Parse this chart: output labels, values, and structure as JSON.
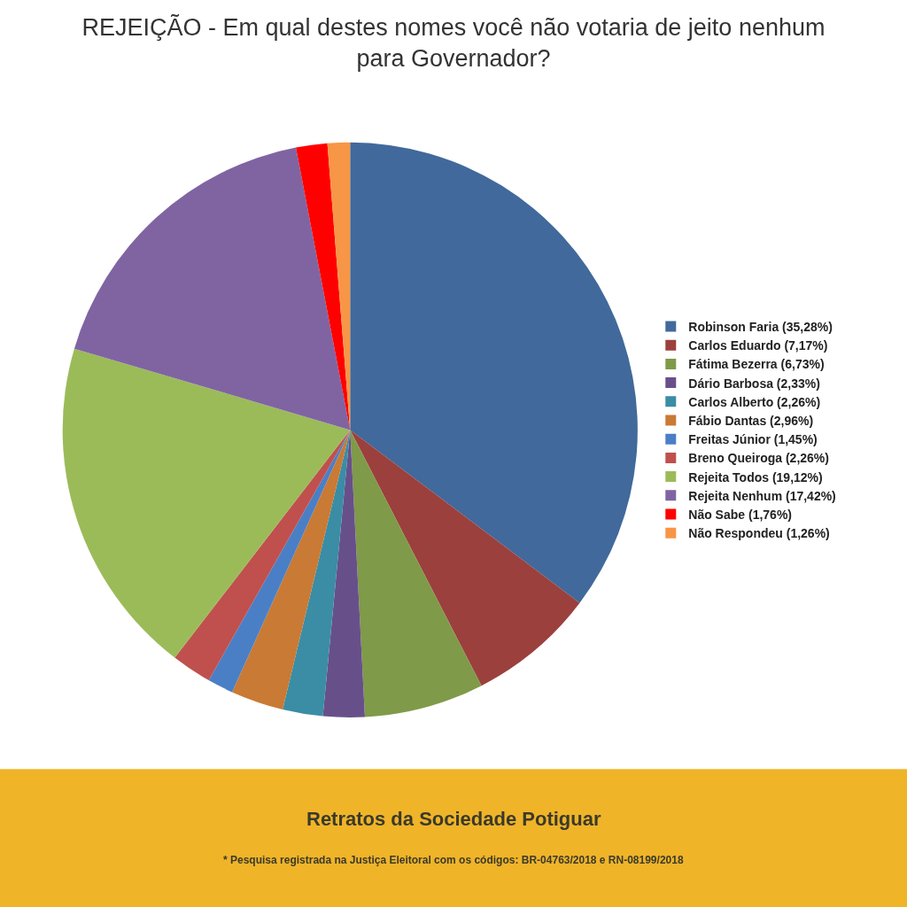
{
  "chart_data": {
    "type": "pie",
    "title": "REJEIÇÃO - Em qual destes nomes você não votaria de jeito nenhum para Governador?",
    "categories": [
      "Robinson Faria (35,28%)",
      "Carlos Eduardo (7,17%)",
      "Fátima Bezerra (6,73%)",
      "Dário Barbosa (2,33%)",
      "Carlos Alberto (2,26%)",
      "Fábio Dantas (2,96%)",
      "Freitas Júnior (1,45%)",
      "Breno Queiroga (2,26%)",
      "Rejeita Todos (19,12%)",
      "Rejeita Nenhum (17,42%)",
      "Não Sabe (1,76%)",
      "Não Respondeu (1,26%)"
    ],
    "values": [
      35.28,
      7.17,
      6.73,
      2.33,
      2.26,
      2.96,
      1.45,
      2.26,
      19.12,
      17.42,
      1.76,
      1.26
    ],
    "colors": [
      "#41699b",
      "#9b403d",
      "#7f9a48",
      "#67508a",
      "#3a8da5",
      "#c97a34",
      "#4a7fc6",
      "#c0504d",
      "#9bbb59",
      "#8064a2",
      "#ff0000",
      "#f79646"
    ],
    "legend": "right",
    "annotations": [
      "Retratos da Sociedade Potiguar",
      "* Pesquisa registrada na Justiça Eleitoral com os códigos: BR-04763/2018 e RN-08199/2018"
    ]
  }
}
